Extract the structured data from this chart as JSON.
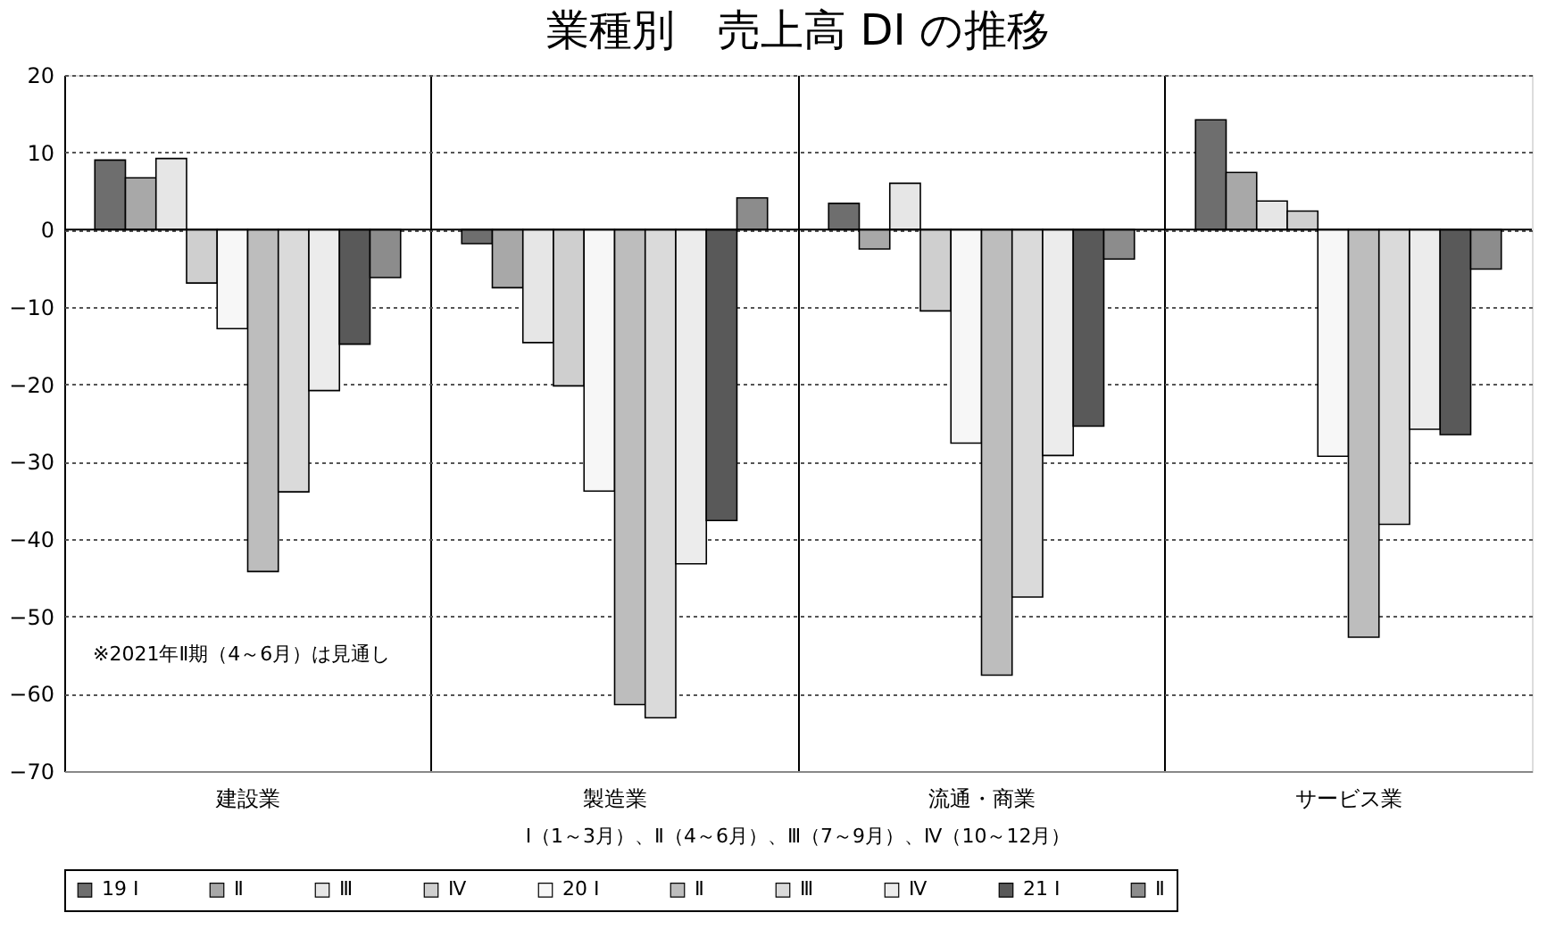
{
  "chart_data": {
    "type": "bar",
    "title": "業種別　売上高 DI の推移",
    "categories": [
      "建設業",
      "製造業",
      "流通・商業",
      "サービス業"
    ],
    "series": [
      {
        "name": "19 Ⅰ",
        "color": "#6e6e6e",
        "values": [
          9.0,
          -1.8,
          3.4,
          14.2
        ]
      },
      {
        "name": "Ⅱ",
        "color": "#a8a8a8",
        "values": [
          6.7,
          -7.5,
          -2.5,
          7.4
        ]
      },
      {
        "name": "Ⅲ",
        "color": "#e6e6e6",
        "values": [
          9.2,
          -14.6,
          6.0,
          3.7
        ]
      },
      {
        "name": "Ⅳ",
        "color": "#cfcfcf",
        "values": [
          -6.9,
          -20.2,
          -10.5,
          2.4
        ]
      },
      {
        "name": "20 Ⅰ",
        "color": "#f7f7f7",
        "values": [
          -12.8,
          -33.8,
          -27.6,
          -29.3
        ]
      },
      {
        "name": "Ⅱ",
        "color": "#bdbdbd",
        "values": [
          -44.2,
          -61.4,
          -57.6,
          -52.7
        ]
      },
      {
        "name": "Ⅲ",
        "color": "#dadada",
        "values": [
          -33.9,
          -63.1,
          -47.5,
          -38.1
        ]
      },
      {
        "name": "Ⅳ",
        "color": "#ececec",
        "values": [
          -20.8,
          -43.2,
          -29.2,
          -25.8
        ]
      },
      {
        "name": "21 Ⅰ",
        "color": "#595959",
        "values": [
          -14.8,
          -37.6,
          -25.4,
          -26.5
        ]
      },
      {
        "name": "Ⅱ",
        "color": "#8c8c8c",
        "values": [
          -6.2,
          4.1,
          -3.8,
          -5.1
        ]
      }
    ],
    "ylim": [
      -70,
      20
    ],
    "yticks": [
      -70,
      -60,
      -50,
      -40,
      -30,
      -20,
      -10,
      0,
      10,
      20
    ],
    "grid": true,
    "legend": "bottom",
    "annotations": [
      "※2021年Ⅱ期（4～6月）は見通し",
      "Ⅰ（1～3月）、Ⅱ（4～6月）、Ⅲ（7～9月）、Ⅳ（10～12月）"
    ]
  }
}
